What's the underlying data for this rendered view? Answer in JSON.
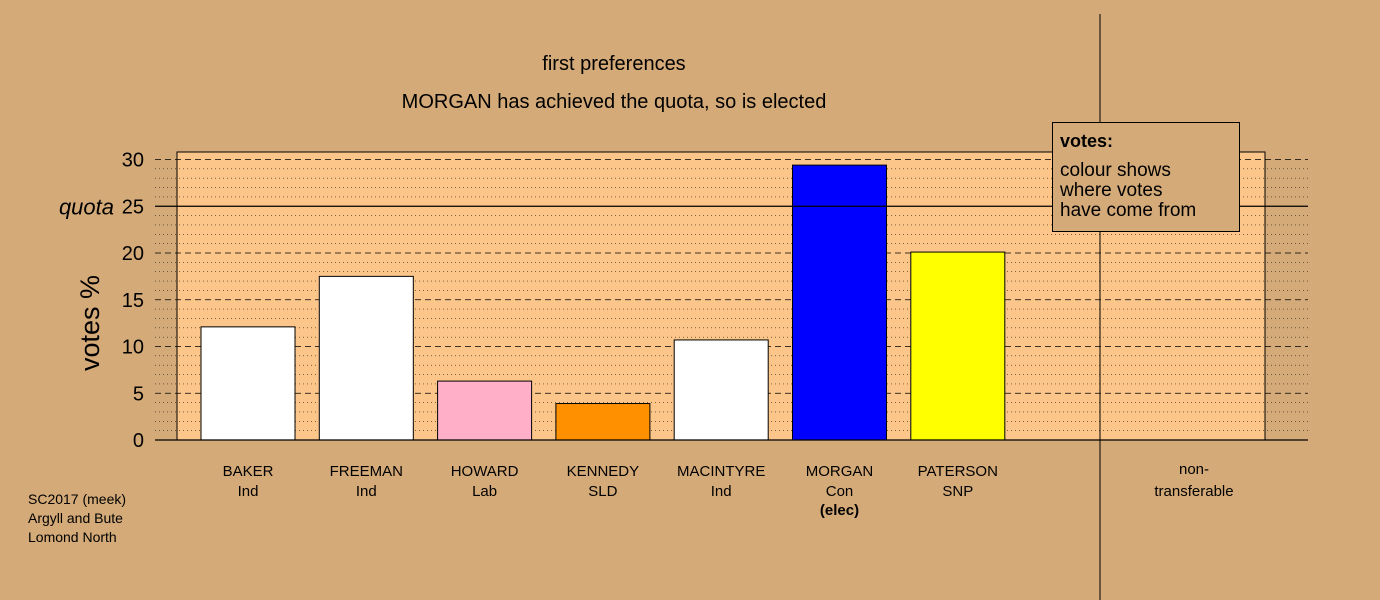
{
  "chart_data": {
    "type": "bar",
    "title": "first preferences",
    "subtitle": "MORGAN has achieved the quota, so is elected",
    "ylabel": "votes %",
    "ylim": [
      0,
      30
    ],
    "yticks": [
      0,
      5,
      10,
      15,
      20,
      25,
      30
    ],
    "quota": 25,
    "quota_label": "quota",
    "grid": true,
    "categories": [
      {
        "name": "BAKER",
        "party": "Ind",
        "note": ""
      },
      {
        "name": "FREEMAN",
        "party": "Ind",
        "note": ""
      },
      {
        "name": "HOWARD",
        "party": "Lab",
        "note": ""
      },
      {
        "name": "KENNEDY",
        "party": "SLD",
        "note": ""
      },
      {
        "name": "MACINTYRE",
        "party": "Ind",
        "note": ""
      },
      {
        "name": "MORGAN",
        "party": "Con",
        "note": "(elec)"
      },
      {
        "name": "PATERSON",
        "party": "SNP",
        "note": ""
      }
    ],
    "values": [
      12.1,
      17.5,
      6.3,
      3.9,
      10.7,
      29.4,
      20.1
    ],
    "colors": [
      "#ffffff",
      "#ffffff",
      "#ffb0c8",
      "#ff9000",
      "#ffffff",
      "#0000ff",
      "#ffff00"
    ],
    "nontransferable": {
      "label_line1": "non-",
      "label_line2": "transferable",
      "value": 0
    }
  },
  "legend": {
    "title": "votes:",
    "lines": [
      "colour shows",
      "where votes",
      "have come from"
    ]
  },
  "footnote": {
    "line1": "SC2017 (meek)",
    "line2": "Argyll and Bute",
    "line3": "Lomond North"
  },
  "colors": {
    "background": "#d4aa78",
    "plot_background": "#fcc68a"
  }
}
